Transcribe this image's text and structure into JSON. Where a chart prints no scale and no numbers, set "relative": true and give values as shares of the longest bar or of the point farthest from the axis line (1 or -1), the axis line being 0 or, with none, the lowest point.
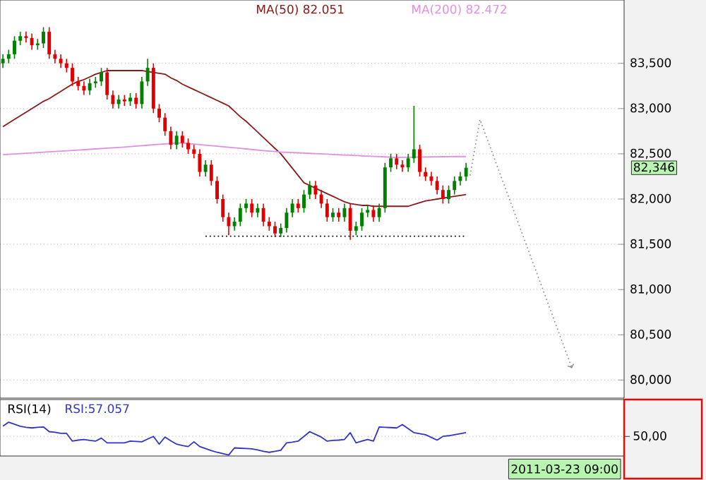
{
  "chart_data": [
    {
      "type": "candlestick",
      "categories": [
        null,
        null,
        null,
        null,
        null,
        null,
        null,
        null,
        null,
        null,
        null,
        null,
        null,
        null,
        null,
        null,
        null,
        null,
        null,
        null,
        null,
        null,
        null,
        null,
        null,
        null,
        null,
        null,
        null,
        null,
        null,
        null,
        null,
        null,
        null,
        null,
        null,
        null,
        null,
        null,
        null,
        null,
        null,
        null,
        null,
        null,
        null,
        null,
        null,
        null,
        null,
        null,
        null,
        null,
        null,
        null,
        null,
        null,
        null,
        null,
        null,
        null,
        null,
        null,
        null,
        null,
        null,
        null,
        null,
        null,
        null,
        null,
        null,
        null,
        null,
        null,
        null,
        null,
        null,
        null,
        null
      ],
      "ohlc": [
        [
          83500,
          83600,
          83450,
          83550
        ],
        [
          83550,
          83650,
          83500,
          83600
        ],
        [
          83600,
          83800,
          83550,
          83750
        ],
        [
          83750,
          83850,
          83700,
          83800
        ],
        [
          83800,
          83850,
          83730,
          83780
        ],
        [
          83780,
          83830,
          83650,
          83700
        ],
        [
          83700,
          83770,
          83650,
          83720
        ],
        [
          83720,
          83900,
          83670,
          83850
        ],
        [
          83850,
          83900,
          83550,
          83600
        ],
        [
          83600,
          83650,
          83500,
          83550
        ],
        [
          83550,
          83600,
          83450,
          83500
        ],
        [
          83500,
          83550,
          83400,
          83450
        ],
        [
          83450,
          83500,
          83250,
          83300
        ],
        [
          83300,
          83350,
          83200,
          83250
        ],
        [
          83250,
          83300,
          83150,
          83200
        ],
        [
          83200,
          83330,
          83150,
          83280
        ],
        [
          83280,
          83350,
          83230,
          83300
        ],
        [
          83300,
          83450,
          83250,
          83400
        ],
        [
          83400,
          83450,
          83100,
          83150
        ],
        [
          83150,
          83200,
          83000,
          83050
        ],
        [
          83050,
          83150,
          83000,
          83100
        ],
        [
          83100,
          83150,
          83030,
          83080
        ],
        [
          83080,
          83170,
          83030,
          83120
        ],
        [
          83120,
          83170,
          83000,
          83050
        ],
        [
          83050,
          83350,
          83000,
          83300
        ],
        [
          83300,
          83550,
          83250,
          83450
        ],
        [
          83450,
          83500,
          82950,
          83000
        ],
        [
          83000,
          83050,
          82850,
          82900
        ],
        [
          82900,
          82950,
          82700,
          82750
        ],
        [
          82750,
          82800,
          82550,
          82600
        ],
        [
          82600,
          82750,
          82550,
          82700
        ],
        [
          82700,
          82750,
          82570,
          82620
        ],
        [
          82620,
          82670,
          82500,
          82550
        ],
        [
          82550,
          82600,
          82450,
          82500
        ],
        [
          82500,
          82550,
          82250,
          82300
        ],
        [
          82300,
          82430,
          82250,
          82380
        ],
        [
          82380,
          82430,
          82150,
          82200
        ],
        [
          82200,
          82250,
          81950,
          82000
        ],
        [
          82000,
          82050,
          81750,
          81800
        ],
        [
          81800,
          81850,
          81600,
          81700
        ],
        [
          81700,
          81800,
          81650,
          81750
        ],
        [
          81750,
          81950,
          81700,
          81900
        ],
        [
          81900,
          82000,
          81850,
          81950
        ],
        [
          81950,
          82000,
          81800,
          81850
        ],
        [
          81850,
          81950,
          81800,
          81900
        ],
        [
          81900,
          81950,
          81700,
          81750
        ],
        [
          81750,
          81800,
          81650,
          81700
        ],
        [
          81700,
          81750,
          81580,
          81620
        ],
        [
          81620,
          81730,
          81580,
          81680
        ],
        [
          81680,
          81900,
          81630,
          81850
        ],
        [
          81850,
          82000,
          81800,
          81950
        ],
        [
          81950,
          82000,
          81850,
          81900
        ],
        [
          81900,
          82100,
          81850,
          82050
        ],
        [
          82050,
          82200,
          82000,
          82150
        ],
        [
          82150,
          82200,
          82000,
          82050
        ],
        [
          82050,
          82100,
          81900,
          81950
        ],
        [
          81950,
          82000,
          81750,
          81800
        ],
        [
          81800,
          81900,
          81750,
          81850
        ],
        [
          81850,
          81900,
          81750,
          81800
        ],
        [
          81800,
          81950,
          81750,
          81900
        ],
        [
          81900,
          81950,
          81550,
          81650
        ],
        [
          81650,
          81750,
          81600,
          81700
        ],
        [
          81700,
          81900,
          81650,
          81850
        ],
        [
          81850,
          81930,
          81800,
          81880
        ],
        [
          81880,
          81930,
          81750,
          81800
        ],
        [
          81800,
          81950,
          81750,
          81900
        ],
        [
          81900,
          82400,
          81850,
          82350
        ],
        [
          82350,
          82500,
          82300,
          82450
        ],
        [
          82450,
          82500,
          82330,
          82380
        ],
        [
          82380,
          82430,
          82300,
          82350
        ],
        [
          82350,
          82500,
          82300,
          82450
        ],
        [
          82450,
          83030,
          82400,
          82550
        ],
        [
          82550,
          82600,
          82250,
          82300
        ],
        [
          82300,
          82350,
          82200,
          82250
        ],
        [
          82250,
          82300,
          82150,
          82200
        ],
        [
          82200,
          82250,
          82050,
          82100
        ],
        [
          82100,
          82150,
          81950,
          82000
        ],
        [
          82000,
          82150,
          81950,
          82100
        ],
        [
          82100,
          82250,
          82050,
          82200
        ],
        [
          82200,
          82300,
          82150,
          82250
        ],
        [
          82250,
          82400,
          82200,
          82346
        ]
      ],
      "series": [
        {
          "type": "line",
          "name": "MA(50)  82.051",
          "color": "#8b1a1a",
          "values": [
            82800,
            82840,
            82880,
            82920,
            82960,
            83000,
            83040,
            83080,
            83110,
            83150,
            83190,
            83230,
            83270,
            83300,
            83320,
            83350,
            83380,
            83400,
            83420,
            83420,
            83420,
            83420,
            83420,
            83420,
            83420,
            83410,
            83400,
            83390,
            83380,
            83340,
            83310,
            83270,
            83240,
            83210,
            83180,
            83150,
            83120,
            83090,
            83060,
            83030,
            82970,
            82910,
            82860,
            82800,
            82740,
            82680,
            82620,
            82560,
            82500,
            82420,
            82340,
            82260,
            82180,
            82150,
            82120,
            82090,
            82060,
            82030,
            82000,
            81970,
            81950,
            81940,
            81930,
            81930,
            81920,
            81920,
            81920,
            81920,
            81920,
            81920,
            81920,
            81940,
            81960,
            81980,
            81990,
            82000,
            82010,
            82020,
            82030,
            82040,
            82050
          ]
        },
        {
          "type": "line",
          "name": "MA(200)  82.472",
          "color": "#e090e0",
          "values": [
            82490,
            82494,
            82498,
            82502,
            82506,
            82510,
            82514,
            82518,
            82522,
            82526,
            82530,
            82534,
            82538,
            82542,
            82546,
            82550,
            82554,
            82558,
            82562,
            82566,
            82570,
            82575,
            82580,
            82585,
            82590,
            82595,
            82600,
            82605,
            82610,
            82615,
            82620,
            82620,
            82614,
            82608,
            82602,
            82596,
            82590,
            82584,
            82578,
            82572,
            82566,
            82560,
            82554,
            82548,
            82542,
            82536,
            82530,
            82525,
            82520,
            82517,
            82514,
            82511,
            82508,
            82505,
            82502,
            82499,
            82496,
            82493,
            82490,
            82487,
            82484,
            82481,
            82478,
            82475,
            82472,
            82469,
            82466,
            82463,
            82460,
            82461,
            82462,
            82463,
            82464,
            82465,
            82466,
            82467,
            82468,
            82469,
            82470,
            82471,
            82470
          ]
        },
        {
          "type": "line",
          "color": "#000000",
          "line_style": "dotted",
          "values": [
            null,
            null,
            null,
            null,
            null,
            null,
            null,
            null,
            null,
            null,
            null,
            null,
            null,
            null,
            null,
            null,
            null,
            null,
            null,
            null,
            null,
            null,
            null,
            null,
            null,
            null,
            null,
            null,
            null,
            null,
            null,
            null,
            null,
            null,
            null,
            81590,
            81590,
            81590,
            81590,
            81590,
            81590,
            81590,
            81590,
            81590,
            81590,
            81590,
            81590,
            81590,
            81590,
            81590,
            81590,
            81590,
            81590,
            81590,
            81590,
            81590,
            81590,
            81590,
            81590,
            81590,
            81590,
            81590,
            81590,
            81590,
            81590,
            81590,
            81590,
            81590,
            81590,
            81590,
            81590,
            81590,
            81590,
            81590,
            81590,
            81590,
            81590,
            81590,
            81590,
            81590,
            81590
          ]
        }
      ],
      "ylim": [
        79800,
        84200
      ],
      "yticks": [
        {
          "value": 80000,
          "label": "80,000"
        },
        {
          "value": 80500,
          "label": "80,500"
        },
        {
          "value": 81000,
          "label": "81,000"
        },
        {
          "value": 81500,
          "label": "81,500"
        },
        {
          "value": 82000,
          "label": "82,000"
        },
        {
          "value": 82500,
          "label": "82,500"
        },
        {
          "value": 83000,
          "label": "83,000"
        },
        {
          "value": 83500,
          "label": "83,500"
        }
      ],
      "grid": "y",
      "legend": "top",
      "tick_labels": "y",
      "annotations": [
        "82,346",
        "2011-03-23 09:00"
      ]
    },
    {
      "type": "line",
      "title": "RSI(14)",
      "relative": true,
      "categories": [
        null,
        null,
        null,
        null,
        null,
        null,
        null,
        null,
        null,
        null,
        null,
        null,
        null,
        null,
        null,
        null,
        null,
        null,
        null,
        null,
        null,
        null,
        null,
        null,
        null,
        null,
        null,
        null,
        null,
        null,
        null,
        null,
        null,
        null,
        null,
        null,
        null,
        null,
        null,
        null,
        null,
        null,
        null,
        null,
        null,
        null,
        null,
        null,
        null,
        null,
        null,
        null,
        null,
        null,
        null,
        null,
        null,
        null,
        null,
        null,
        null,
        null,
        null,
        null,
        null,
        null,
        null,
        null,
        null,
        null,
        null,
        null,
        null,
        null,
        null,
        null,
        null,
        null,
        null,
        null,
        null
      ],
      "series": [
        {
          "name": "RSI:57.057",
          "color": "#3333cc",
          "values": [
            0.88,
            1.0,
            0.94,
            0.88,
            0.85,
            0.83,
            0.85,
            0.86,
            0.72,
            0.7,
            0.67,
            0.67,
            0.44,
            0.47,
            0.49,
            0.46,
            0.44,
            0.53,
            0.39,
            0.39,
            0.39,
            0.39,
            0.44,
            0.43,
            0.42,
            0.5,
            0.58,
            0.35,
            0.56,
            0.45,
            0.35,
            0.31,
            0.28,
            0.42,
            0.28,
            0.22,
            0.16,
            0.11,
            0.07,
            0.03,
            0.24,
            0.23,
            0.22,
            0.21,
            0.18,
            0.14,
            0.11,
            0.14,
            0.17,
            0.39,
            0.41,
            0.44,
            0.58,
            0.72,
            0.64,
            0.56,
            0.44,
            0.46,
            0.47,
            0.49,
            0.69,
            0.39,
            0.44,
            0.49,
            0.44,
            0.86,
            0.85,
            0.84,
            0.83,
            0.93,
            0.81,
            0.69,
            0.66,
            0.63,
            0.55,
            0.47,
            0.58,
            0.6,
            0.63,
            0.66,
            0.69
          ]
        }
      ],
      "ref_lines": [
        {
          "axis": "y",
          "value": 0.58,
          "color": "#808080",
          "line_style": "dotted"
        }
      ],
      "annotations": [
        "50,00"
      ]
    }
  ]
}
